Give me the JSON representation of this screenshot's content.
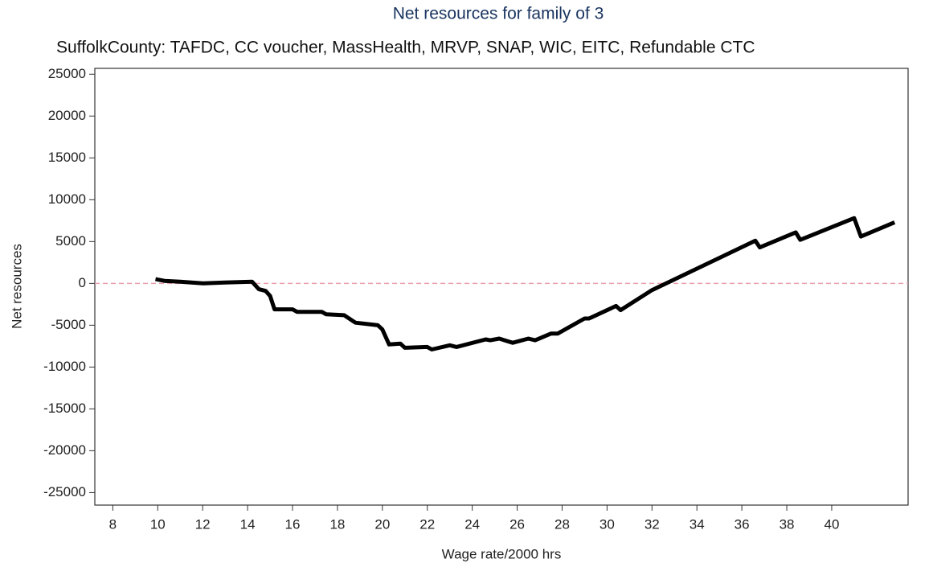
{
  "chart_data": {
    "type": "line",
    "title": "Net resources for family of 3",
    "subtitle": "SuffolkCounty: TAFDC, CC voucher, MassHealth, MRVP, SNAP, WIC, EITC, Refundable CTC",
    "x_label": "Wage rate/2000 hrs",
    "y_label": "Net resources",
    "xlim": [
      7.2,
      43.4
    ],
    "ylim": [
      -26500,
      25700
    ],
    "xticks": [
      8,
      10,
      12,
      14,
      16,
      18,
      20,
      22,
      24,
      26,
      28,
      30,
      32,
      34,
      36,
      38,
      40
    ],
    "yticks": [
      -25000,
      -20000,
      -15000,
      -10000,
      -5000,
      0,
      5000,
      10000,
      15000,
      20000,
      25000
    ],
    "reference_line": 0,
    "reference_color": "#e8a0b0",
    "grid": false,
    "series": [
      {
        "color": "#000000",
        "x": [
          9.9,
          10.3,
          11,
          12,
          13,
          14.2,
          14.5,
          14.8,
          15,
          15.2,
          16,
          16.2,
          17.3,
          17.5,
          18.3,
          18.8,
          19.8,
          20,
          20.3,
          20.8,
          21,
          22,
          22.2,
          23,
          23.3,
          24.6,
          24.8,
          25.2,
          25.8,
          26.5,
          26.8,
          27.5,
          27.8,
          29,
          29.2,
          30.4,
          30.6,
          32,
          36.6,
          36.8,
          38.4,
          38.6,
          41.0,
          41.3,
          42.8
        ],
        "values": [
          500,
          300,
          200,
          0,
          100,
          200,
          -700,
          -900,
          -1500,
          -3100,
          -3100,
          -3400,
          -3400,
          -3700,
          -3800,
          -4700,
          -5000,
          -5500,
          -7300,
          -7200,
          -7700,
          -7600,
          -7900,
          -7400,
          -7600,
          -6700,
          -6800,
          -6600,
          -7100,
          -6600,
          -6800,
          -6000,
          -6000,
          -4200,
          -4200,
          -2700,
          -3200,
          -800,
          5100,
          4300,
          6100,
          5200,
          7800,
          5600,
          7300
        ]
      }
    ]
  }
}
